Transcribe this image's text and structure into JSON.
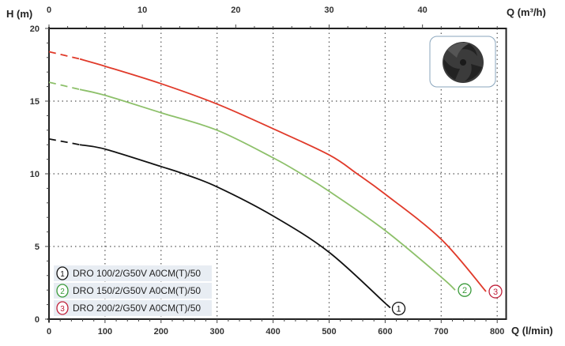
{
  "chart_data": {
    "type": "line",
    "ylabel": "H (m)",
    "xlabel": "Q (l/min)",
    "x2label": "Q (m³/h)",
    "xlim": [
      0,
      816
    ],
    "ylim": [
      0,
      20
    ],
    "xticks": [
      0,
      100,
      200,
      300,
      400,
      500,
      600,
      700,
      800
    ],
    "yticks": [
      0,
      5,
      10,
      15,
      20
    ],
    "x2ticks": [
      0,
      10,
      20,
      30,
      40
    ],
    "grid": true,
    "legend": "bottom-left",
    "series": [
      {
        "name": "DRO 100/2/G50V A0CM(T)/50",
        "marker": "1",
        "color": "#111111",
        "dashed_until": 55,
        "x": [
          0,
          55,
          100,
          200,
          240,
          300,
          400,
          500,
          600,
          603
        ],
        "y": [
          12.4,
          12.0,
          11.7,
          10.5,
          10.0,
          9.1,
          7.1,
          4.6,
          1.1,
          1.0
        ]
      },
      {
        "name": "DRO 150/2/G50V A0CM(T)/50",
        "marker": "2",
        "color": "#8dc06a",
        "dashed_until": 55,
        "x": [
          0,
          55,
          100,
          200,
          300,
          400,
          450,
          500,
          600,
          700,
          725
        ],
        "y": [
          16.3,
          15.8,
          15.4,
          14.2,
          13.0,
          11.1,
          10.0,
          8.8,
          6.1,
          2.9,
          2.0
        ]
      },
      {
        "name": "DRO 200/2/G50V A0CM(T)/50",
        "marker": "3",
        "color": "#e03a2a",
        "dashed_until": 55,
        "x": [
          0,
          55,
          100,
          200,
          300,
          400,
          500,
          550,
          600,
          700,
          780
        ],
        "y": [
          18.4,
          17.9,
          17.4,
          16.2,
          14.8,
          13.1,
          11.3,
          10.0,
          8.6,
          5.5,
          1.9
        ]
      }
    ]
  },
  "colors": {
    "marker1": "#111111",
    "marker2": "#3a9a3a",
    "marker3": "#c0213a",
    "legend_bg": "#e8edf3"
  },
  "image": {
    "icon": "impeller-icon"
  }
}
